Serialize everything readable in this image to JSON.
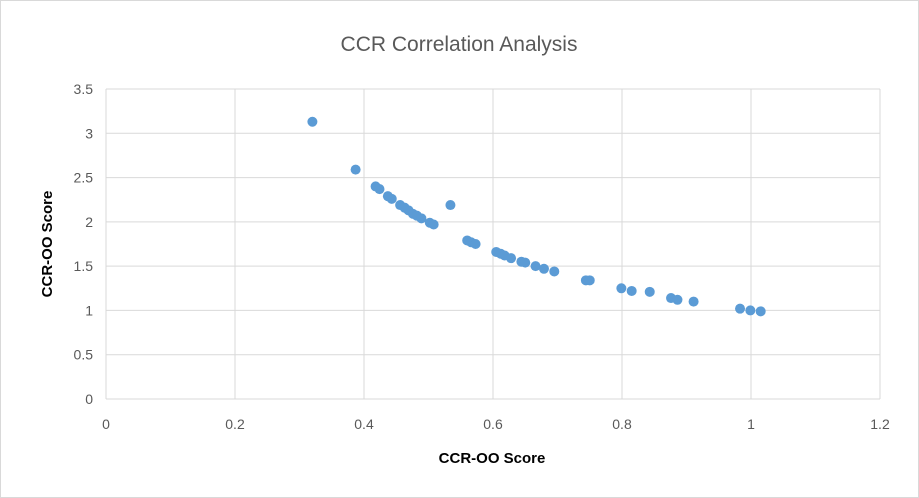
{
  "chart_data": {
    "type": "scatter",
    "title": "CCR Correlation Analysis",
    "xlabel": "CCR-OO Score",
    "ylabel": "CCR-OO Score",
    "xlim": [
      0,
      1.2
    ],
    "ylim": [
      0,
      3.5
    ],
    "x_ticks": [
      "0",
      "0.2",
      "0.4",
      "0.6",
      "0.8",
      "1",
      "1.2"
    ],
    "y_ticks": [
      "0",
      "0.5",
      "1",
      "1.5",
      "2",
      "2.5",
      "3",
      "3.5"
    ],
    "grid": true,
    "legend": "none",
    "marker_color": "#5b9bd5",
    "points": [
      {
        "x": 0.32,
        "y": 3.13
      },
      {
        "x": 0.387,
        "y": 2.59
      },
      {
        "x": 0.418,
        "y": 2.4
      },
      {
        "x": 0.424,
        "y": 2.37
      },
      {
        "x": 0.437,
        "y": 2.29
      },
      {
        "x": 0.443,
        "y": 2.26
      },
      {
        "x": 0.456,
        "y": 2.19
      },
      {
        "x": 0.463,
        "y": 2.16
      },
      {
        "x": 0.469,
        "y": 2.13
      },
      {
        "x": 0.476,
        "y": 2.09
      },
      {
        "x": 0.482,
        "y": 2.07
      },
      {
        "x": 0.489,
        "y": 2.04
      },
      {
        "x": 0.502,
        "y": 1.99
      },
      {
        "x": 0.508,
        "y": 1.97
      },
      {
        "x": 0.534,
        "y": 2.19
      },
      {
        "x": 0.56,
        "y": 1.79
      },
      {
        "x": 0.566,
        "y": 1.77
      },
      {
        "x": 0.573,
        "y": 1.75
      },
      {
        "x": 0.605,
        "y": 1.66
      },
      {
        "x": 0.612,
        "y": 1.64
      },
      {
        "x": 0.618,
        "y": 1.62
      },
      {
        "x": 0.628,
        "y": 1.59
      },
      {
        "x": 0.644,
        "y": 1.55
      },
      {
        "x": 0.65,
        "y": 1.54
      },
      {
        "x": 0.666,
        "y": 1.5
      },
      {
        "x": 0.679,
        "y": 1.47
      },
      {
        "x": 0.695,
        "y": 1.44
      },
      {
        "x": 0.744,
        "y": 1.34
      },
      {
        "x": 0.75,
        "y": 1.34
      },
      {
        "x": 0.799,
        "y": 1.25
      },
      {
        "x": 0.815,
        "y": 1.22
      },
      {
        "x": 0.843,
        "y": 1.21
      },
      {
        "x": 0.876,
        "y": 1.14
      },
      {
        "x": 0.886,
        "y": 1.12
      },
      {
        "x": 0.911,
        "y": 1.1
      },
      {
        "x": 0.983,
        "y": 1.02
      },
      {
        "x": 0.999,
        "y": 1.0
      },
      {
        "x": 1.015,
        "y": 0.99
      }
    ]
  }
}
